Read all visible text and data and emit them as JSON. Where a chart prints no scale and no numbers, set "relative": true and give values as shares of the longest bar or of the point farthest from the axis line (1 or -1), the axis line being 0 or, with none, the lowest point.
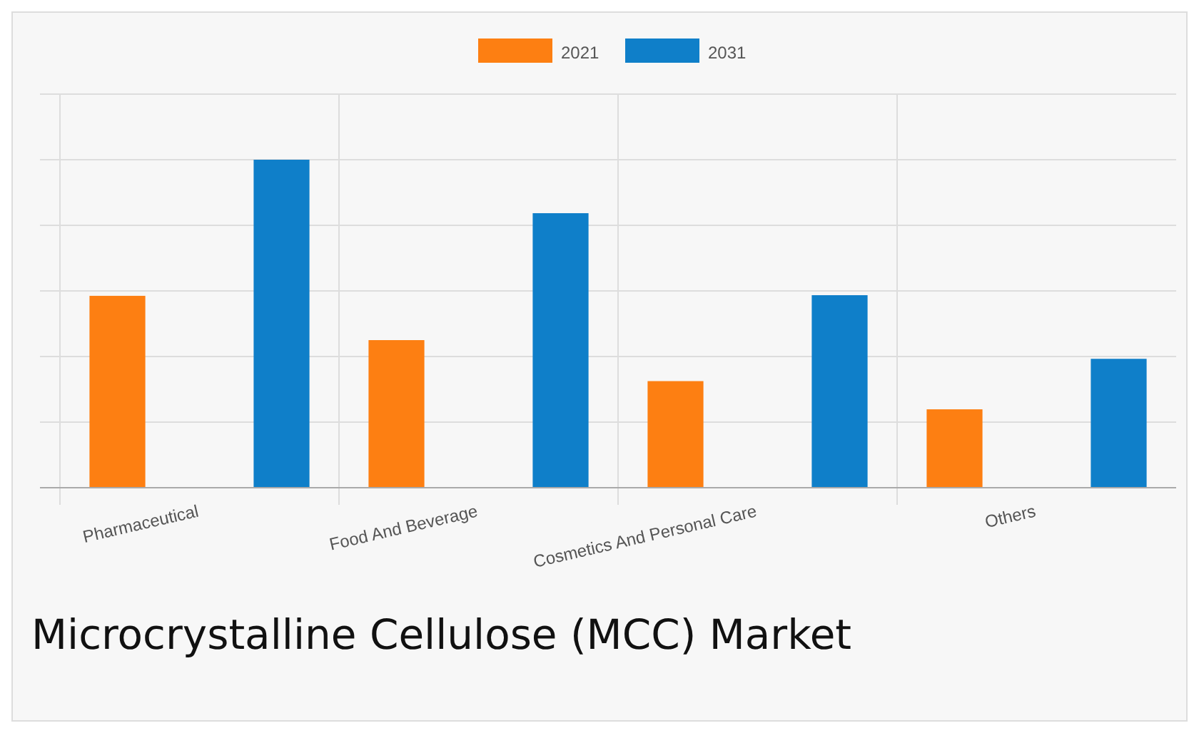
{
  "chart_data": {
    "type": "bar",
    "title": "Microcrystalline Cellulose (MCC) Market",
    "relative": true,
    "grid": true,
    "legend": "top",
    "categories": [
      "Pharmaceutical",
      "Food And Beverage",
      "Cosmetics And Personal Care",
      "Others"
    ],
    "series": [
      {
        "name": "2021",
        "color": "#fd7f12",
        "values": [
          0.585,
          0.45,
          0.325,
          0.239
        ]
      },
      {
        "name": "2031",
        "color": "#0f7fc9",
        "values": [
          1,
          0.837,
          0.587,
          0.393
        ]
      }
    ]
  }
}
